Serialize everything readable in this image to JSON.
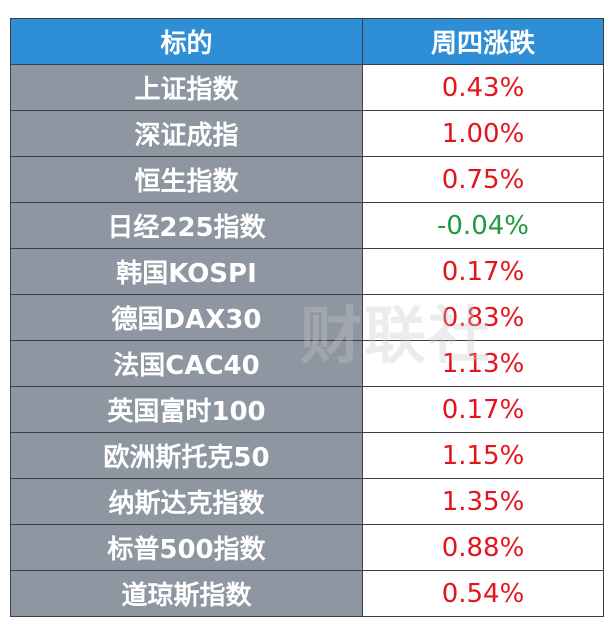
{
  "table": {
    "header": [
      "标的",
      "周四涨跌"
    ],
    "rows": [
      [
        "上证指数",
        "0.43%"
      ],
      [
        "深证成指",
        "1.00%"
      ],
      [
        "恒生指数",
        "0.75%"
      ],
      [
        "日经225指数",
        "-0.04%"
      ],
      [
        "韩国KOSPI",
        "0.17%"
      ],
      [
        "德国DAX30",
        "0.83%"
      ],
      [
        "法国CAC40",
        "1.13%"
      ],
      [
        "英国富时100",
        "0.17%"
      ],
      [
        "欧洲斯托克50",
        "1.15%"
      ],
      [
        "纳斯达克指数",
        "1.35%"
      ],
      [
        "标普500指数",
        "0.88%"
      ],
      [
        "道琼斯指数",
        "0.54%"
      ]
    ]
  },
  "watermark": "财联社"
}
